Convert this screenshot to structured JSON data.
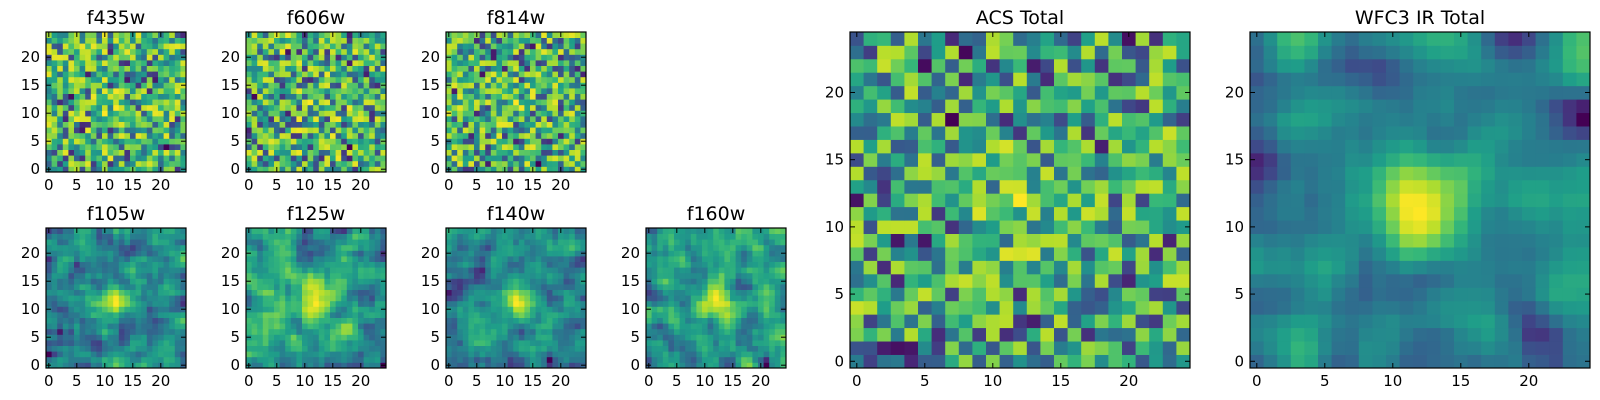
{
  "chart_data": [
    {
      "type": "heatmap",
      "title": "f435w",
      "xticks": [
        "0",
        "5",
        "10",
        "15",
        "20"
      ],
      "yticks": [
        "0",
        "5",
        "10",
        "15",
        "20"
      ],
      "xlim": [
        0,
        25
      ],
      "ylim": [
        0,
        25
      ],
      "grid_size": 25,
      "colormap": "viridis",
      "grid": false,
      "texture": "noise",
      "seed": 11
    },
    {
      "type": "heatmap",
      "title": "f606w",
      "xticks": [
        "0",
        "5",
        "10",
        "15",
        "20"
      ],
      "yticks": [
        "0",
        "5",
        "10",
        "15",
        "20"
      ],
      "xlim": [
        0,
        25
      ],
      "ylim": [
        0,
        25
      ],
      "grid_size": 25,
      "colormap": "viridis",
      "grid": false,
      "texture": "noise",
      "seed": 23
    },
    {
      "type": "heatmap",
      "title": "f814w",
      "xticks": [
        "0",
        "5",
        "10",
        "15",
        "20"
      ],
      "yticks": [
        "0",
        "5",
        "10",
        "15",
        "20"
      ],
      "xlim": [
        0,
        25
      ],
      "ylim": [
        0,
        25
      ],
      "grid_size": 25,
      "colormap": "viridis",
      "grid": false,
      "texture": "noise",
      "seed": 37
    },
    {
      "type": "heatmap",
      "title": "f105w",
      "xticks": [
        "0",
        "5",
        "10",
        "15",
        "20"
      ],
      "yticks": [
        "0",
        "5",
        "10",
        "15",
        "20"
      ],
      "xlim": [
        0,
        25
      ],
      "ylim": [
        0,
        25
      ],
      "grid_size": 25,
      "colormap": "viridis",
      "grid": false,
      "texture": "smooth",
      "seed": 41
    },
    {
      "type": "heatmap",
      "title": "f125w",
      "xticks": [
        "0",
        "5",
        "10",
        "15",
        "20"
      ],
      "yticks": [
        "0",
        "5",
        "10",
        "15",
        "20"
      ],
      "xlim": [
        0,
        25
      ],
      "ylim": [
        0,
        25
      ],
      "grid_size": 25,
      "colormap": "viridis",
      "grid": false,
      "texture": "smooth",
      "seed": 53
    },
    {
      "type": "heatmap",
      "title": "f140w",
      "xticks": [
        "0",
        "5",
        "10",
        "15",
        "20"
      ],
      "yticks": [
        "0",
        "5",
        "10",
        "15",
        "20"
      ],
      "xlim": [
        0,
        25
      ],
      "ylim": [
        0,
        25
      ],
      "grid_size": 25,
      "colormap": "viridis",
      "grid": false,
      "texture": "smooth",
      "seed": 67
    },
    {
      "type": "heatmap",
      "title": "f160w",
      "xticks": [
        "0",
        "5",
        "10",
        "15",
        "20"
      ],
      "yticks": [
        "0",
        "5",
        "10",
        "15",
        "20"
      ],
      "xlim": [
        0,
        25
      ],
      "ylim": [
        0,
        25
      ],
      "grid_size": 25,
      "colormap": "viridis",
      "grid": false,
      "texture": "smooth",
      "seed": 79
    },
    {
      "type": "heatmap",
      "title": "ACS Total",
      "xticks": [
        "0",
        "5",
        "10",
        "15",
        "20"
      ],
      "yticks": [
        "0",
        "5",
        "10",
        "15",
        "20"
      ],
      "xlim": [
        0,
        25
      ],
      "ylim": [
        0,
        25
      ],
      "grid_size": 25,
      "colormap": "viridis",
      "grid": false,
      "texture": "acs",
      "seed": 97
    },
    {
      "type": "heatmap",
      "title": "WFC3 IR Total",
      "xticks": [
        "0",
        "5",
        "10",
        "15",
        "20"
      ],
      "yticks": [
        "0",
        "5",
        "10",
        "15",
        "20"
      ],
      "xlim": [
        0,
        25
      ],
      "ylim": [
        0,
        25
      ],
      "grid_size": 25,
      "colormap": "viridis",
      "grid": false,
      "texture": "ir",
      "seed": 113
    }
  ]
}
